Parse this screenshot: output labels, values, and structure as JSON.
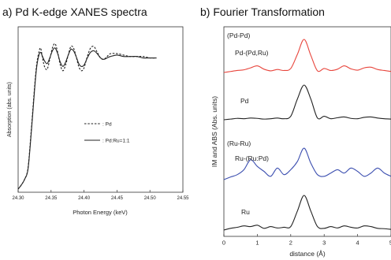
{
  "chart_data": [
    {
      "type": "line",
      "title": "a) Pd K-edge XANES spectra",
      "xlabel": "Photon Energy (keV)",
      "ylabel": "Absorption (abs. units)",
      "xlim": [
        24.3,
        24.55
      ],
      "xticks": [
        "24.30",
        "24.35",
        "24.40",
        "24.45",
        "24.50",
        "24.55"
      ],
      "legend_position": "center-right",
      "grid": false,
      "series": [
        {
          "name": ": Pd",
          "style": "dashed",
          "color": "#222222",
          "x": [
            24.3,
            24.305,
            24.31,
            24.315,
            24.32,
            24.325,
            24.328,
            24.331,
            24.334,
            24.337,
            24.34,
            24.344,
            24.348,
            24.352,
            24.356,
            24.36,
            24.364,
            24.368,
            24.372,
            24.376,
            24.38,
            24.384,
            24.388,
            24.392,
            24.396,
            24.4,
            24.405,
            24.41,
            24.415,
            24.42,
            24.425,
            24.43,
            24.435,
            24.44,
            24.45,
            24.46,
            24.47,
            24.48,
            24.49,
            24.5,
            24.51
          ],
          "y": [
            0.0,
            0.03,
            0.07,
            0.15,
            0.42,
            0.72,
            0.87,
            0.95,
            0.99,
            0.92,
            0.86,
            0.84,
            0.91,
            0.99,
            1.02,
            0.96,
            0.87,
            0.83,
            0.87,
            0.94,
            1.0,
            0.99,
            0.93,
            0.86,
            0.83,
            0.85,
            0.93,
            0.99,
            1.0,
            0.96,
            0.92,
            0.91,
            0.93,
            0.95,
            0.95,
            0.94,
            0.93,
            0.93,
            0.93,
            0.92,
            0.92
          ]
        },
        {
          "name": ": Pd:Ru=1:1",
          "style": "solid",
          "color": "#222222",
          "x": [
            24.3,
            24.305,
            24.31,
            24.315,
            24.32,
            24.325,
            24.328,
            24.331,
            24.334,
            24.337,
            24.34,
            24.344,
            24.348,
            24.352,
            24.356,
            24.36,
            24.364,
            24.368,
            24.372,
            24.376,
            24.38,
            24.384,
            24.388,
            24.392,
            24.396,
            24.4,
            24.405,
            24.41,
            24.415,
            24.42,
            24.425,
            24.43,
            24.435,
            24.44,
            24.45,
            24.46,
            24.47,
            24.48,
            24.49,
            24.5,
            24.51
          ],
          "y": [
            0.0,
            0.03,
            0.07,
            0.14,
            0.4,
            0.7,
            0.85,
            0.93,
            0.96,
            0.93,
            0.9,
            0.88,
            0.92,
            0.97,
            0.99,
            0.95,
            0.89,
            0.86,
            0.89,
            0.94,
            0.98,
            0.97,
            0.93,
            0.88,
            0.86,
            0.87,
            0.92,
            0.96,
            0.97,
            0.95,
            0.92,
            0.91,
            0.92,
            0.93,
            0.94,
            0.93,
            0.93,
            0.93,
            0.92,
            0.92,
            0.92
          ]
        }
      ]
    },
    {
      "type": "line",
      "title": "b) Fourier Transformation",
      "xlabel": "distance (Å)",
      "ylabel": "IM and ABS (Abs. units)",
      "xlim": [
        0,
        5
      ],
      "xticks": [
        "0",
        "1",
        "2",
        "3",
        "4",
        "5"
      ],
      "group_labels": [
        "(Pd-Pd)",
        "(Ru-Ru)"
      ],
      "grid": false,
      "series": [
        {
          "name": "Pd-(Pd,Ru)",
          "color": "#e8453c",
          "x": [
            0.0,
            0.2,
            0.4,
            0.6,
            0.8,
            1.0,
            1.2,
            1.4,
            1.6,
            1.8,
            2.0,
            2.2,
            2.4,
            2.6,
            2.8,
            3.0,
            3.2,
            3.4,
            3.6,
            3.8,
            4.0,
            4.2,
            4.4,
            4.6,
            4.8,
            5.0
          ],
          "y": [
            0.0,
            0.03,
            0.06,
            0.08,
            0.14,
            0.2,
            0.1,
            0.05,
            0.09,
            0.06,
            0.12,
            0.55,
            1.0,
            0.52,
            0.05,
            0.12,
            0.06,
            0.1,
            0.2,
            0.11,
            0.07,
            0.14,
            0.16,
            0.09,
            0.06,
            0.03
          ]
        },
        {
          "name": "Pd",
          "color": "#222222",
          "x": [
            0.0,
            0.2,
            0.4,
            0.6,
            0.8,
            1.0,
            1.2,
            1.4,
            1.6,
            1.8,
            2.0,
            2.2,
            2.4,
            2.6,
            2.8,
            3.0,
            3.2,
            3.4,
            3.6,
            3.8,
            4.0,
            4.2,
            4.4,
            4.6,
            4.8,
            5.0
          ],
          "y": [
            0.0,
            0.02,
            0.04,
            0.03,
            0.05,
            0.04,
            0.02,
            0.03,
            0.05,
            0.03,
            0.1,
            0.6,
            1.0,
            0.6,
            0.05,
            0.1,
            0.03,
            0.06,
            0.08,
            0.04,
            0.03,
            0.07,
            0.08,
            0.05,
            0.03,
            0.02
          ]
        },
        {
          "name": "Ru-(Ru:Pd)",
          "color": "#3c4fb0",
          "x": [
            0.0,
            0.2,
            0.4,
            0.6,
            0.8,
            1.0,
            1.2,
            1.4,
            1.6,
            1.8,
            2.0,
            2.2,
            2.4,
            2.6,
            2.8,
            3.0,
            3.2,
            3.4,
            3.6,
            3.8,
            4.0,
            4.2,
            4.4,
            4.6,
            4.8,
            5.0
          ],
          "y": [
            0.0,
            0.08,
            0.15,
            0.3,
            0.6,
            0.4,
            0.25,
            0.1,
            0.35,
            0.15,
            0.3,
            0.55,
            0.95,
            0.5,
            0.15,
            0.1,
            0.2,
            0.3,
            0.2,
            0.35,
            0.25,
            0.1,
            0.2,
            0.35,
            0.2,
            0.1
          ]
        },
        {
          "name": "Ru",
          "color": "#222222",
          "x": [
            0.0,
            0.2,
            0.4,
            0.6,
            0.8,
            1.0,
            1.2,
            1.4,
            1.6,
            1.8,
            2.0,
            2.2,
            2.4,
            2.6,
            2.8,
            3.0,
            3.2,
            3.4,
            3.6,
            3.8,
            4.0,
            4.2,
            4.4,
            4.6,
            4.8,
            5.0
          ],
          "y": [
            0.0,
            0.05,
            0.08,
            0.12,
            0.1,
            0.14,
            0.05,
            0.1,
            0.06,
            0.08,
            0.1,
            0.55,
            1.0,
            0.55,
            0.1,
            0.05,
            0.1,
            0.06,
            0.12,
            0.08,
            0.06,
            0.12,
            0.1,
            0.05,
            0.04,
            0.02
          ]
        }
      ]
    }
  ]
}
